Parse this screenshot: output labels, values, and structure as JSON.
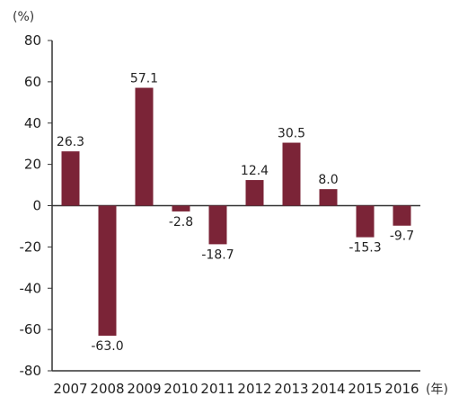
{
  "chart_data": {
    "type": "bar",
    "categories": [
      "2007",
      "2008",
      "2009",
      "2010",
      "2011",
      "2012",
      "2013",
      "2014",
      "2015",
      "2016"
    ],
    "values": [
      26.3,
      -63.0,
      57.1,
      -2.8,
      -18.7,
      12.4,
      30.5,
      8.0,
      -15.3,
      -9.7
    ],
    "data_labels": [
      "26.3",
      "-63.0",
      "57.1",
      "-2.8",
      "-18.7",
      "12.4",
      "30.5",
      "8.0",
      "-15.3",
      "-9.7"
    ],
    "y_unit_label": "(%)",
    "x_unit_label": "(年)",
    "ylim": [
      -80,
      80
    ],
    "y_ticks": [
      80,
      60,
      40,
      20,
      0,
      -20,
      -40,
      -60,
      -80
    ],
    "grid": false,
    "bar_color": "#7b2437",
    "axis_color": "#333333"
  }
}
